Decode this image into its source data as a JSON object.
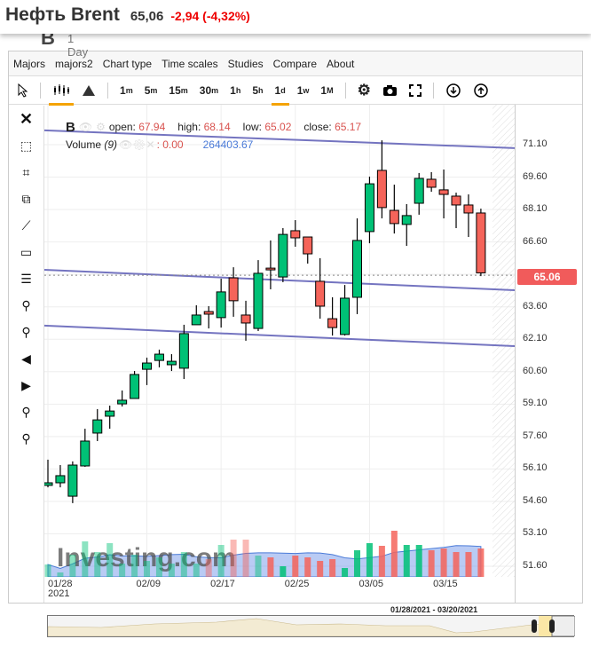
{
  "header": {
    "name": "Нефть Brent",
    "price": "65,06",
    "change": "-2,94 (-4,32%)"
  },
  "behind": {
    "symbol": "B",
    "period": "1 Day"
  },
  "menu": [
    "Majors",
    "majors2",
    "Chart type",
    "Time scales",
    "Studies",
    "Compare",
    "About"
  ],
  "toolbar": {
    "timescales": [
      {
        "n": "1",
        "u": "m"
      },
      {
        "n": "5",
        "u": "m"
      },
      {
        "n": "15",
        "u": "m"
      },
      {
        "n": "30",
        "u": "m"
      },
      {
        "n": "1",
        "u": "h"
      },
      {
        "n": "5",
        "u": "h"
      },
      {
        "n": "1",
        "u": "d"
      },
      {
        "n": "1",
        "u": "w"
      },
      {
        "n": "1",
        "u": "M"
      }
    ],
    "active_timescale": "1d",
    "active_chart_type": "candles"
  },
  "legend": {
    "symbol": "B",
    "open_label": "open:",
    "open": "67.94",
    "high_label": "high:",
    "high": "68.14",
    "low_label": "low:",
    "low": "65.02",
    "close_label": "close:",
    "close": "65.17",
    "volume_label": "Volume",
    "volume_period": "(9)",
    "volume_value": ": 0.00",
    "volume_ma": "264403.67"
  },
  "current_price": "65.06",
  "navigator": {
    "range": "01/28/2021 - 03/20/2021"
  },
  "watermark": "Investing.com",
  "colors": {
    "up": "#00c176",
    "down": "#f5645a",
    "trend": "#7474c0",
    "price_label": "#f15b5b",
    "accent": "#f4a300"
  },
  "chart_data": {
    "type": "candlestick",
    "ylim": [
      51.0,
      72.2
    ],
    "yticks": [
      "71.10",
      "69.60",
      "68.10",
      "66.60",
      "63.60",
      "62.10",
      "60.60",
      "59.10",
      "57.60",
      "56.10",
      "54.60",
      "53.10",
      "51.60"
    ],
    "xticks": [
      {
        "i": 0,
        "label": "01/28",
        "sub": "2021"
      },
      {
        "i": 8,
        "label": "02/09"
      },
      {
        "i": 14,
        "label": "02/17"
      },
      {
        "i": 20,
        "label": "02/25"
      },
      {
        "i": 26,
        "label": "03/05"
      },
      {
        "i": 32,
        "label": "03/15"
      }
    ],
    "candles": [
      [
        55.34,
        56.53,
        55.25,
        55.46
      ],
      [
        55.46,
        56.28,
        55.25,
        55.79
      ],
      [
        54.84,
        56.45,
        54.52,
        56.28
      ],
      [
        56.24,
        57.96,
        56.2,
        57.39
      ],
      [
        57.76,
        58.87,
        57.39,
        58.37
      ],
      [
        58.54,
        59.03,
        57.96,
        58.78
      ],
      [
        59.11,
        59.73,
        58.99,
        59.28
      ],
      [
        59.36,
        60.63,
        59.36,
        60.47
      ],
      [
        60.71,
        61.25,
        59.98,
        61.0
      ],
      [
        61.12,
        61.62,
        60.8,
        61.41
      ],
      [
        60.92,
        61.41,
        60.63,
        61.08
      ],
      [
        60.76,
        62.77,
        60.26,
        62.36
      ],
      [
        62.77,
        63.67,
        62.77,
        63.22
      ],
      [
        63.38,
        63.63,
        62.6,
        63.26
      ],
      [
        63.1,
        64.9,
        62.64,
        64.29
      ],
      [
        64.94,
        65.43,
        63.14,
        63.88
      ],
      [
        63.22,
        63.88,
        62.03,
        62.85
      ],
      [
        62.6,
        65.76,
        62.48,
        65.15
      ],
      [
        65.39,
        66.67,
        64.41,
        65.31
      ],
      [
        64.98,
        67.24,
        64.74,
        66.95
      ],
      [
        67.12,
        67.61,
        66.38,
        66.79
      ],
      [
        66.83,
        66.83,
        65.6,
        66.05
      ],
      [
        64.78,
        65.85,
        63.05,
        63.63
      ],
      [
        63.05,
        64.04,
        62.27,
        62.64
      ],
      [
        62.32,
        64.61,
        62.27,
        64.0
      ],
      [
        64.04,
        67.69,
        63.26,
        66.67
      ],
      [
        67.08,
        69.62,
        66.54,
        69.29
      ],
      [
        69.91,
        71.3,
        67.69,
        68.19
      ],
      [
        68.06,
        69.25,
        66.99,
        67.45
      ],
      [
        67.41,
        68.35,
        66.42,
        67.82
      ],
      [
        68.39,
        69.79,
        67.86,
        69.54
      ],
      [
        69.5,
        69.83,
        68.92,
        69.13
      ],
      [
        69.01,
        69.95,
        67.69,
        68.8
      ],
      [
        68.72,
        68.88,
        67.24,
        68.31
      ],
      [
        68.31,
        68.8,
        66.83,
        67.94
      ],
      [
        67.94,
        68.14,
        65.02,
        65.17
      ]
    ],
    "volumes": [
      14,
      5,
      25,
      40,
      28,
      38,
      15,
      25,
      18,
      22,
      15,
      28,
      15,
      20,
      36,
      42,
      42,
      24,
      22,
      12,
      24,
      22,
      18,
      20,
      10,
      30,
      38,
      35,
      52,
      36,
      36,
      30,
      32,
      28,
      28,
      32
    ],
    "trendlines": [
      {
        "from": 71.76,
        "to": 70.94
      },
      {
        "from": 65.31,
        "to": 64.37
      },
      {
        "from": 62.73,
        "to": 61.78
      }
    ]
  }
}
